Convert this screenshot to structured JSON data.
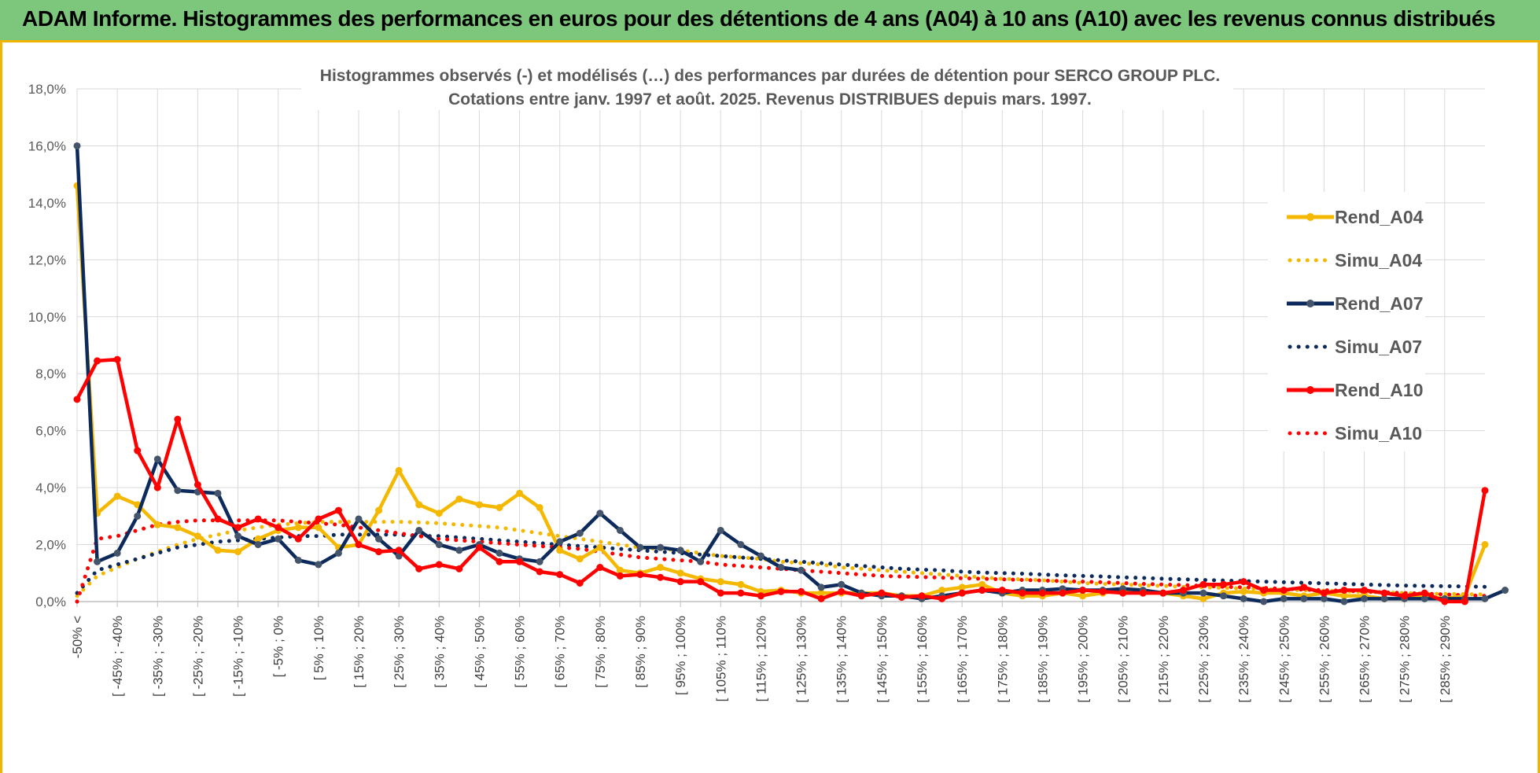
{
  "header": {
    "title": "ADAM Informe. Histogrammes des performances en euros pour des détentions de 4 ans (A04) à 10 ans (A10) avec les revenus connus distribués"
  },
  "colors": {
    "A04": "#f5b800",
    "A07": "#0d2a5c",
    "A10": "#ff0000",
    "banner": "#7dc77d",
    "grid": "#d9d9d9"
  },
  "chart_data": {
    "type": "line",
    "title_lines": [
      "Histogrammes observés (-) et modélisés (…) des performances par durées de détention pour SERCO GROUP PLC.",
      "Cotations entre janv. 1997 et août. 2025. Revenus DISTRIBUES depuis mars. 1997."
    ],
    "ylim": [
      0,
      18
    ],
    "y_ticks": [
      "0,0%",
      "2,0%",
      "4,0%",
      "6,0%",
      "8,0%",
      "10,0%",
      "12,0%",
      "14,0%",
      "16,0%",
      "18,0%"
    ],
    "x_labels": [
      "-50% <",
      "[ -45% ; -40%",
      "[ -35% ; -30%",
      "[ -25% ; -20%",
      "[ -15% ; -10%",
      "[ -5% ; 0%",
      "[ 5% ; 10%",
      "[ 15% ; 20%",
      "[ 25% ; 30%",
      "[ 35% ; 40%",
      "[ 45% ; 50%",
      "[ 55% ; 60%",
      "[ 65% ; 70%",
      "[ 75% ; 80%",
      "[ 85% ; 90%",
      "[ 95% ; 100%",
      "[ 105% ; 110%",
      "[ 115% ; 120%",
      "[ 125% ; 130%",
      "[ 135% ; 140%",
      "[ 145% ; 150%",
      "[ 155% ; 160%",
      "[ 165% ; 170%",
      "[ 175% ; 180%",
      "[ 185% ; 190%",
      "[ 195% ; 200%",
      "[ 205% ; 210%",
      "[ 215% ; 220%",
      "[ 225% ; 230%",
      "[ 235% ; 240%",
      "[ 245% ; 250%",
      "[ 255% ; 260%",
      "[ 265% ; 270%",
      "[ 275% ; 280%",
      "[ 285% ; 290%"
    ],
    "legend_position": "right",
    "series": [
      {
        "name": "Rend_A04",
        "style": "solid",
        "color_key": "A04",
        "values": [
          14.6,
          3.1,
          3.7,
          3.4,
          2.7,
          2.6,
          2.3,
          1.8,
          1.75,
          2.2,
          2.5,
          2.6,
          2.6,
          1.9,
          2.0,
          3.2,
          4.6,
          3.4,
          3.1,
          3.6,
          3.4,
          3.3,
          3.8,
          3.3,
          1.8,
          1.5,
          1.9,
          1.1,
          1.0,
          1.2,
          1.0,
          0.8,
          0.7,
          0.6,
          0.35,
          0.4,
          0.3,
          0.3,
          0.3,
          0.3,
          0.3,
          0.2,
          0.2,
          0.4,
          0.5,
          0.6,
          0.3,
          0.2,
          0.2,
          0.3,
          0.2,
          0.3,
          0.4,
          0.3,
          0.3,
          0.2,
          0.1,
          0.3,
          0.35,
          0.3,
          0.3,
          0.2,
          0.3,
          0.2,
          0.2,
          0.1,
          0.1,
          0.2,
          0.1,
          0.2,
          2.0
        ]
      },
      {
        "name": "Simu_A04",
        "style": "dotted",
        "color_key": "A04",
        "values": [
          0.2,
          0.9,
          1.2,
          1.5,
          1.75,
          2.0,
          2.2,
          2.35,
          2.5,
          2.6,
          2.7,
          2.75,
          2.8,
          2.8,
          2.8,
          2.8,
          2.8,
          2.78,
          2.75,
          2.7,
          2.65,
          2.6,
          2.5,
          2.4,
          2.3,
          2.2,
          2.1,
          2.0,
          1.9,
          1.85,
          1.8,
          1.7,
          1.6,
          1.55,
          1.5,
          1.4,
          1.35,
          1.3,
          1.2,
          1.15,
          1.1,
          1.05,
          1.0,
          0.95,
          0.9,
          0.85,
          0.8,
          0.78,
          0.75,
          0.7,
          0.65,
          0.62,
          0.6,
          0.57,
          0.55,
          0.52,
          0.5,
          0.48,
          0.46,
          0.44,
          0.42,
          0.4,
          0.38,
          0.36,
          0.34,
          0.32,
          0.3,
          0.28,
          0.27,
          0.26,
          0.25
        ]
      },
      {
        "name": "Rend_A07",
        "style": "solid",
        "color_key": "A07",
        "values": [
          16.0,
          1.4,
          1.7,
          3.0,
          5.0,
          3.9,
          3.85,
          3.8,
          2.3,
          2.0,
          2.2,
          1.45,
          1.3,
          1.7,
          2.9,
          2.2,
          1.6,
          2.5,
          2.0,
          1.8,
          2.0,
          1.7,
          1.5,
          1.4,
          2.1,
          2.4,
          3.1,
          2.5,
          1.9,
          1.9,
          1.8,
          1.4,
          2.5,
          2.0,
          1.6,
          1.2,
          1.1,
          0.5,
          0.6,
          0.3,
          0.2,
          0.2,
          0.1,
          0.2,
          0.3,
          0.4,
          0.3,
          0.4,
          0.4,
          0.45,
          0.4,
          0.4,
          0.45,
          0.4,
          0.3,
          0.3,
          0.3,
          0.2,
          0.1,
          0.0,
          0.1,
          0.1,
          0.1,
          0.0,
          0.1,
          0.1,
          0.1,
          0.1,
          0.1,
          0.1,
          0.1,
          0.4
        ]
      },
      {
        "name": "Simu_A07",
        "style": "dotted",
        "color_key": "A07",
        "values": [
          0.3,
          1.1,
          1.3,
          1.5,
          1.7,
          1.9,
          2.0,
          2.1,
          2.15,
          2.2,
          2.25,
          2.3,
          2.3,
          2.35,
          2.35,
          2.35,
          2.35,
          2.3,
          2.3,
          2.25,
          2.2,
          2.15,
          2.1,
          2.05,
          2.0,
          1.95,
          1.9,
          1.85,
          1.8,
          1.75,
          1.7,
          1.65,
          1.6,
          1.55,
          1.5,
          1.45,
          1.4,
          1.35,
          1.3,
          1.25,
          1.2,
          1.15,
          1.12,
          1.1,
          1.05,
          1.02,
          1.0,
          0.98,
          0.95,
          0.92,
          0.9,
          0.88,
          0.85,
          0.83,
          0.8,
          0.78,
          0.76,
          0.74,
          0.72,
          0.7,
          0.68,
          0.66,
          0.64,
          0.62,
          0.6,
          0.58,
          0.56,
          0.55,
          0.54,
          0.53,
          0.52
        ]
      },
      {
        "name": "Rend_A10",
        "style": "solid",
        "color_key": "A10",
        "values": [
          7.1,
          8.45,
          8.5,
          5.3,
          4.0,
          6.4,
          4.1,
          2.9,
          2.6,
          2.9,
          2.6,
          2.2,
          2.9,
          3.2,
          2.0,
          1.75,
          1.8,
          1.15,
          1.3,
          1.15,
          1.9,
          1.4,
          1.4,
          1.05,
          0.95,
          0.65,
          1.2,
          0.9,
          0.95,
          0.85,
          0.7,
          0.7,
          0.3,
          0.3,
          0.2,
          0.35,
          0.35,
          0.1,
          0.35,
          0.2,
          0.3,
          0.15,
          0.2,
          0.1,
          0.3,
          0.4,
          0.4,
          0.3,
          0.3,
          0.3,
          0.4,
          0.35,
          0.3,
          0.3,
          0.3,
          0.4,
          0.6,
          0.6,
          0.7,
          0.4,
          0.4,
          0.5,
          0.3,
          0.4,
          0.4,
          0.3,
          0.2,
          0.3,
          0.0,
          0.0,
          3.9
        ]
      },
      {
        "name": "Simu_A10",
        "style": "dotted",
        "color_key": "A10",
        "values": [
          0.0,
          2.2,
          2.3,
          2.5,
          2.7,
          2.8,
          2.85,
          2.85,
          2.85,
          2.85,
          2.85,
          2.8,
          2.75,
          2.7,
          2.6,
          2.5,
          2.4,
          2.3,
          2.2,
          2.15,
          2.1,
          2.05,
          2.0,
          1.95,
          1.9,
          1.85,
          1.75,
          1.65,
          1.55,
          1.5,
          1.45,
          1.4,
          1.3,
          1.25,
          1.2,
          1.15,
          1.1,
          1.05,
          1.0,
          0.95,
          0.9,
          0.88,
          0.86,
          0.84,
          0.82,
          0.8,
          0.78,
          0.76,
          0.74,
          0.72,
          0.7,
          0.68,
          0.65,
          0.62,
          0.6,
          0.58,
          0.55,
          0.52,
          0.5,
          0.48,
          0.45,
          0.42,
          0.4,
          0.38,
          0.35,
          0.32,
          0.3,
          0.28,
          0.25,
          0.22,
          0.2
        ]
      }
    ]
  }
}
